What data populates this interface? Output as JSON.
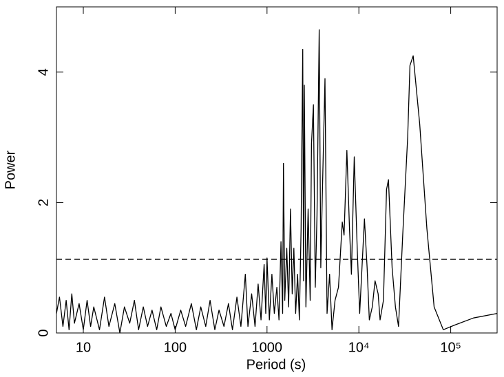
{
  "chart_data": {
    "type": "line",
    "xlabel": "Period (s)",
    "ylabel": "Power",
    "xscale": "log",
    "xlim": [
      5.1,
      320000
    ],
    "ylim": [
      0,
      5
    ],
    "xticks": [
      10,
      100,
      1000,
      {
        "value": 10000,
        "label": "10⁴"
      },
      {
        "value": 100000,
        "label": "10⁵"
      }
    ],
    "yticks": [
      0,
      2,
      4
    ],
    "threshold": 1.13,
    "series": [
      {
        "color": "#000000",
        "x": [
          5.1,
          5.5,
          6,
          6.5,
          7,
          7.5,
          8,
          9,
          10,
          11,
          12,
          13,
          15,
          17,
          19,
          22,
          25,
          28,
          32,
          36,
          40,
          45,
          50,
          56,
          63,
          70,
          80,
          90,
          100,
          115,
          130,
          150,
          170,
          190,
          215,
          240,
          270,
          300,
          340,
          380,
          420,
          470,
          520,
          580,
          620,
          680,
          740,
          800,
          860,
          930,
          970,
          1000,
          1060,
          1130,
          1200,
          1280,
          1350,
          1420,
          1480,
          1510,
          1560,
          1640,
          1720,
          1800,
          1880,
          1960,
          2050,
          2150,
          2250,
          2350,
          2450,
          2500,
          2550,
          2650,
          2800,
          2950,
          3050,
          3200,
          3350,
          3500,
          3700,
          3850,
          4000,
          4280,
          4500,
          4800,
          5100,
          5500,
          6000,
          6600,
          6900,
          7400,
          7900,
          8300,
          8900,
          9600,
          10200,
          11500,
          12300,
          13000,
          14000,
          15000,
          16200,
          17000,
          18500,
          20000,
          21000,
          23000,
          25000,
          27000,
          30000,
          34000,
          36000,
          39000,
          46000,
          55000,
          66000,
          83000,
          110000,
          177000,
          320000
        ],
        "values": [
          0.3,
          0.55,
          0.1,
          0.5,
          0.05,
          0.6,
          0.15,
          0.45,
          0.05,
          0.5,
          0.1,
          0.4,
          0.05,
          0.55,
          0.1,
          0.45,
          0.0,
          0.4,
          0.15,
          0.5,
          0.05,
          0.4,
          0.1,
          0.35,
          0.05,
          0.4,
          0.1,
          0.3,
          0.05,
          0.35,
          0.1,
          0.45,
          0.05,
          0.4,
          0.1,
          0.5,
          0.05,
          0.35,
          0.1,
          0.45,
          0.05,
          0.55,
          0.1,
          0.9,
          0.1,
          0.6,
          0.1,
          0.75,
          0.2,
          1.05,
          0.3,
          1.15,
          0.2,
          0.9,
          0.3,
          0.7,
          0.2,
          1.4,
          0.3,
          2.6,
          0.5,
          1.3,
          0.4,
          1.9,
          0.6,
          1.3,
          0.3,
          0.9,
          0.2,
          1.6,
          4.35,
          0.8,
          3.8,
          0.4,
          1.9,
          0.5,
          2.9,
          3.5,
          0.7,
          1.8,
          4.65,
          1.0,
          2.1,
          3.9,
          0.3,
          0.9,
          0.05,
          0.5,
          0.7,
          1.7,
          1.5,
          2.8,
          1.6,
          0.9,
          2.7,
          1.3,
          0.3,
          1.75,
          1.0,
          0.2,
          0.4,
          0.8,
          0.6,
          0.2,
          0.5,
          2.2,
          2.35,
          1.0,
          0.4,
          0.1,
          1.5,
          3.0,
          4.1,
          4.25,
          3.2,
          1.6,
          0.4,
          0.05,
          0.12,
          0.23,
          0.3
        ]
      }
    ]
  }
}
